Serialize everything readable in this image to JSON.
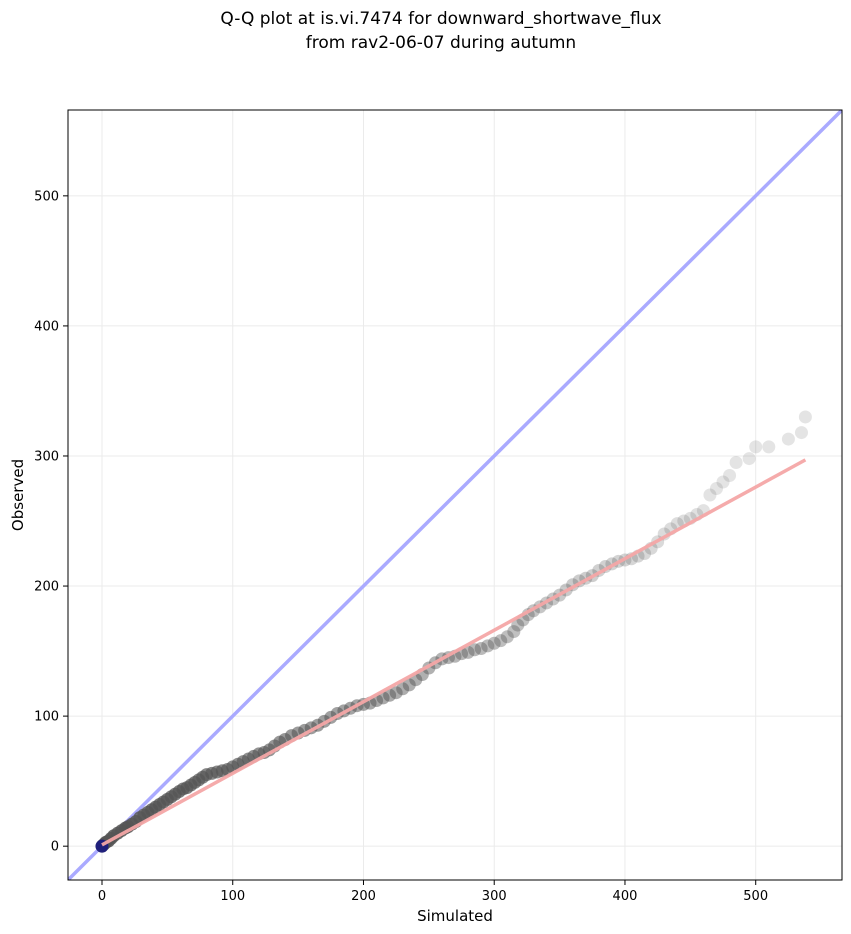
{
  "chart_data": {
    "type": "scatter",
    "title_lines": [
      "Q-Q plot at is.vi.7474 for downward_shortwave_flux",
      "from rav2-06-07 during autumn"
    ],
    "xlabel": "Simulated",
    "ylabel": "Observed",
    "xlim": [
      -26,
      566
    ],
    "ylim": [
      -26,
      566
    ],
    "xticks": [
      0,
      100,
      200,
      300,
      400,
      500
    ],
    "yticks": [
      0,
      100,
      200,
      300,
      400,
      500
    ],
    "grid": true,
    "reference_line": {
      "name": "1:1",
      "color": "#aaaaff",
      "from": [
        -26,
        -26
      ],
      "to": [
        566,
        566
      ]
    },
    "fit_line": {
      "color": "#f4a6a6",
      "from": [
        0,
        1
      ],
      "to": [
        538,
        297
      ]
    },
    "point_color": "#555555",
    "points": [
      [
        0,
        0
      ],
      [
        1,
        1
      ],
      [
        2,
        2
      ],
      [
        3,
        3
      ],
      [
        5,
        4
      ],
      [
        7,
        6
      ],
      [
        9,
        8
      ],
      [
        12,
        10
      ],
      [
        15,
        12
      ],
      [
        18,
        14
      ],
      [
        20,
        15
      ],
      [
        23,
        17
      ],
      [
        26,
        19
      ],
      [
        29,
        22
      ],
      [
        32,
        24
      ],
      [
        35,
        26
      ],
      [
        38,
        28
      ],
      [
        41,
        30
      ],
      [
        44,
        32
      ],
      [
        47,
        34
      ],
      [
        50,
        36
      ],
      [
        53,
        38
      ],
      [
        56,
        40
      ],
      [
        59,
        42
      ],
      [
        62,
        44
      ],
      [
        65,
        45
      ],
      [
        68,
        47
      ],
      [
        71,
        49
      ],
      [
        74,
        51
      ],
      [
        77,
        53
      ],
      [
        80,
        55
      ],
      [
        84,
        56
      ],
      [
        88,
        57
      ],
      [
        92,
        58
      ],
      [
        96,
        59
      ],
      [
        100,
        61
      ],
      [
        104,
        63
      ],
      [
        108,
        65
      ],
      [
        112,
        67
      ],
      [
        116,
        69
      ],
      [
        120,
        71
      ],
      [
        124,
        72
      ],
      [
        128,
        74
      ],
      [
        132,
        77
      ],
      [
        136,
        80
      ],
      [
        140,
        82
      ],
      [
        145,
        85
      ],
      [
        150,
        87
      ],
      [
        155,
        89
      ],
      [
        160,
        91
      ],
      [
        165,
        93
      ],
      [
        170,
        96
      ],
      [
        175,
        99
      ],
      [
        180,
        102
      ],
      [
        185,
        104
      ],
      [
        190,
        106
      ],
      [
        195,
        108
      ],
      [
        200,
        109
      ],
      [
        205,
        110
      ],
      [
        210,
        112
      ],
      [
        215,
        114
      ],
      [
        220,
        116
      ],
      [
        225,
        118
      ],
      [
        230,
        121
      ],
      [
        235,
        124
      ],
      [
        240,
        128
      ],
      [
        245,
        132
      ],
      [
        250,
        137
      ],
      [
        255,
        141
      ],
      [
        260,
        144
      ],
      [
        265,
        145
      ],
      [
        270,
        146
      ],
      [
        275,
        148
      ],
      [
        280,
        149
      ],
      [
        285,
        151
      ],
      [
        290,
        152
      ],
      [
        295,
        154
      ],
      [
        300,
        156
      ],
      [
        305,
        158
      ],
      [
        310,
        161
      ],
      [
        315,
        165
      ],
      [
        318,
        170
      ],
      [
        322,
        174
      ],
      [
        326,
        178
      ],
      [
        330,
        181
      ],
      [
        335,
        184
      ],
      [
        340,
        187
      ],
      [
        345,
        190
      ],
      [
        350,
        193
      ],
      [
        355,
        197
      ],
      [
        360,
        201
      ],
      [
        365,
        204
      ],
      [
        370,
        206
      ],
      [
        375,
        208
      ],
      [
        380,
        212
      ],
      [
        385,
        215
      ],
      [
        390,
        217
      ],
      [
        395,
        219
      ],
      [
        400,
        220
      ],
      [
        405,
        221
      ],
      [
        410,
        223
      ],
      [
        415,
        225
      ],
      [
        420,
        229
      ],
      [
        425,
        234
      ],
      [
        430,
        240
      ],
      [
        435,
        244
      ],
      [
        440,
        248
      ],
      [
        445,
        250
      ],
      [
        450,
        252
      ],
      [
        455,
        255
      ],
      [
        460,
        258
      ],
      [
        465,
        270
      ],
      [
        470,
        275
      ],
      [
        475,
        280
      ],
      [
        480,
        285
      ],
      [
        485,
        295
      ],
      [
        495,
        298
      ],
      [
        500,
        307
      ],
      [
        510,
        307
      ],
      [
        525,
        313
      ],
      [
        535,
        318
      ],
      [
        538,
        330
      ]
    ]
  }
}
